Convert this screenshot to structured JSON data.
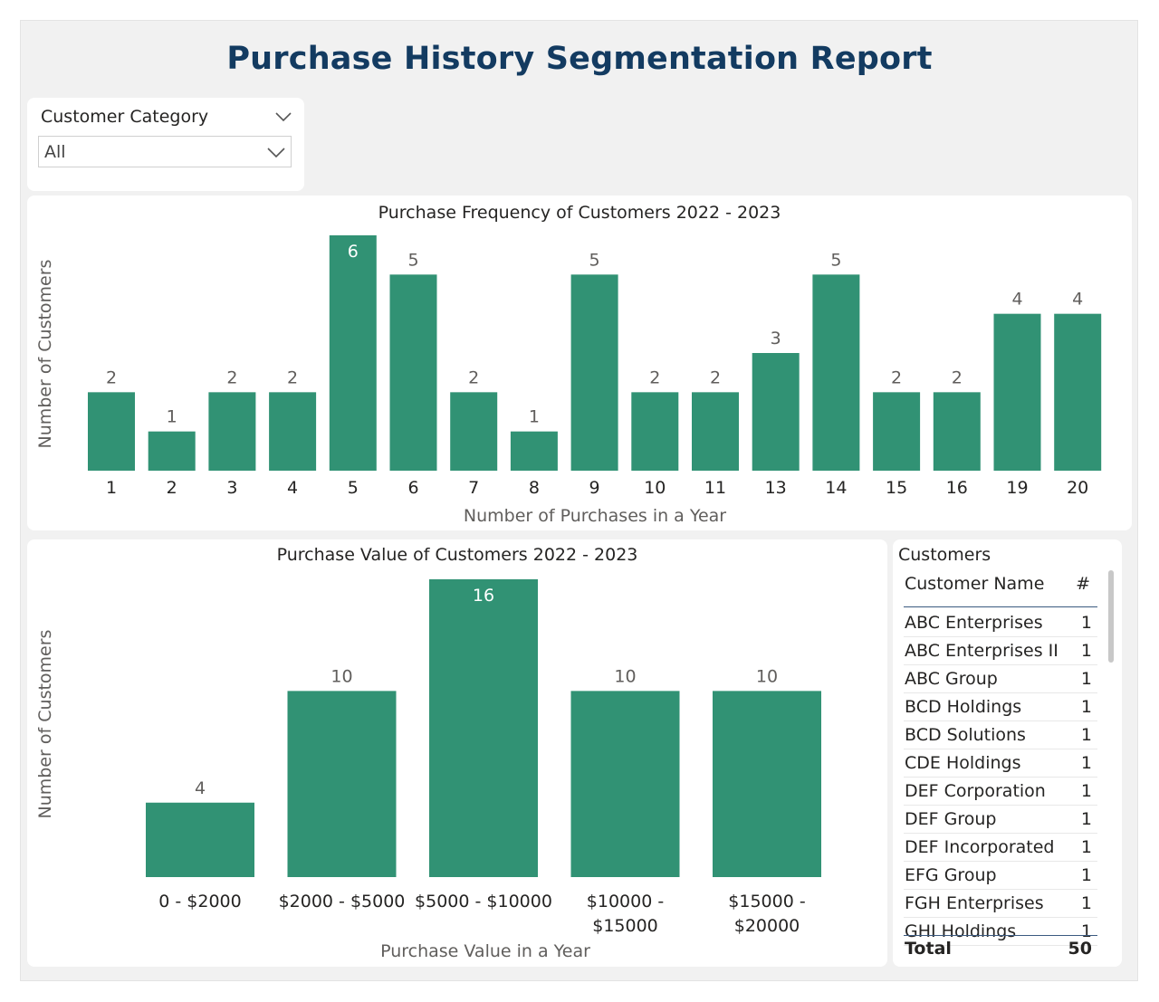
{
  "report": {
    "title": "Purchase History Segmentation Report"
  },
  "colors": {
    "bar": "#319274",
    "title": "#133b61"
  },
  "slicer": {
    "title": "Customer Category",
    "value": "All",
    "chevron_icon": "chevron-down-icon"
  },
  "chart_data": [
    {
      "type": "bar",
      "title": "Purchase Frequency of Customers 2022 - 2023",
      "xlabel": "Number of Purchases in a Year",
      "ylabel": "Number of Customers",
      "categories": [
        "1",
        "2",
        "3",
        "4",
        "5",
        "6",
        "7",
        "8",
        "9",
        "10",
        "11",
        "13",
        "14",
        "15",
        "16",
        "19",
        "20"
      ],
      "values": [
        2,
        1,
        2,
        2,
        6,
        5,
        2,
        1,
        5,
        2,
        2,
        3,
        5,
        2,
        2,
        4,
        4
      ],
      "ylim": [
        0,
        6
      ],
      "grid": false
    },
    {
      "type": "bar",
      "title": "Purchase Value of Customers 2022 - 2023",
      "xlabel": "Purchase Value in a Year",
      "ylabel": "Number of Customers",
      "categories": [
        "0 - $2000",
        "$2000 - $5000",
        "$5000 - $10000",
        "$10000 - $15000",
        "$15000 - $20000"
      ],
      "category_lines": [
        [
          "0 - $2000"
        ],
        [
          "$2000 - $5000"
        ],
        [
          "$5000 - $10000"
        ],
        [
          "$10000 -",
          "$15000"
        ],
        [
          "$15000 -",
          "$20000"
        ]
      ],
      "values": [
        4,
        10,
        16,
        10,
        10
      ],
      "ylim": [
        0,
        16
      ],
      "grid": false
    }
  ],
  "table": {
    "title": "Customers",
    "headers": {
      "name": "Customer Name",
      "count": "#"
    },
    "rows": [
      {
        "name": "ABC Enterprises",
        "count": "1"
      },
      {
        "name": "ABC Enterprises II",
        "count": "1"
      },
      {
        "name": "ABC Group",
        "count": "1"
      },
      {
        "name": "BCD Holdings",
        "count": "1"
      },
      {
        "name": "BCD Solutions",
        "count": "1"
      },
      {
        "name": "CDE Holdings",
        "count": "1"
      },
      {
        "name": "DEF Corporation",
        "count": "1"
      },
      {
        "name": "DEF Group",
        "count": "1"
      },
      {
        "name": "DEF Incorporated",
        "count": "1"
      },
      {
        "name": "EFG Group",
        "count": "1"
      },
      {
        "name": "FGH Enterprises",
        "count": "1"
      },
      {
        "name": "GHI Holdings",
        "count": "1"
      }
    ],
    "total": {
      "label": "Total",
      "count": "50"
    }
  }
}
